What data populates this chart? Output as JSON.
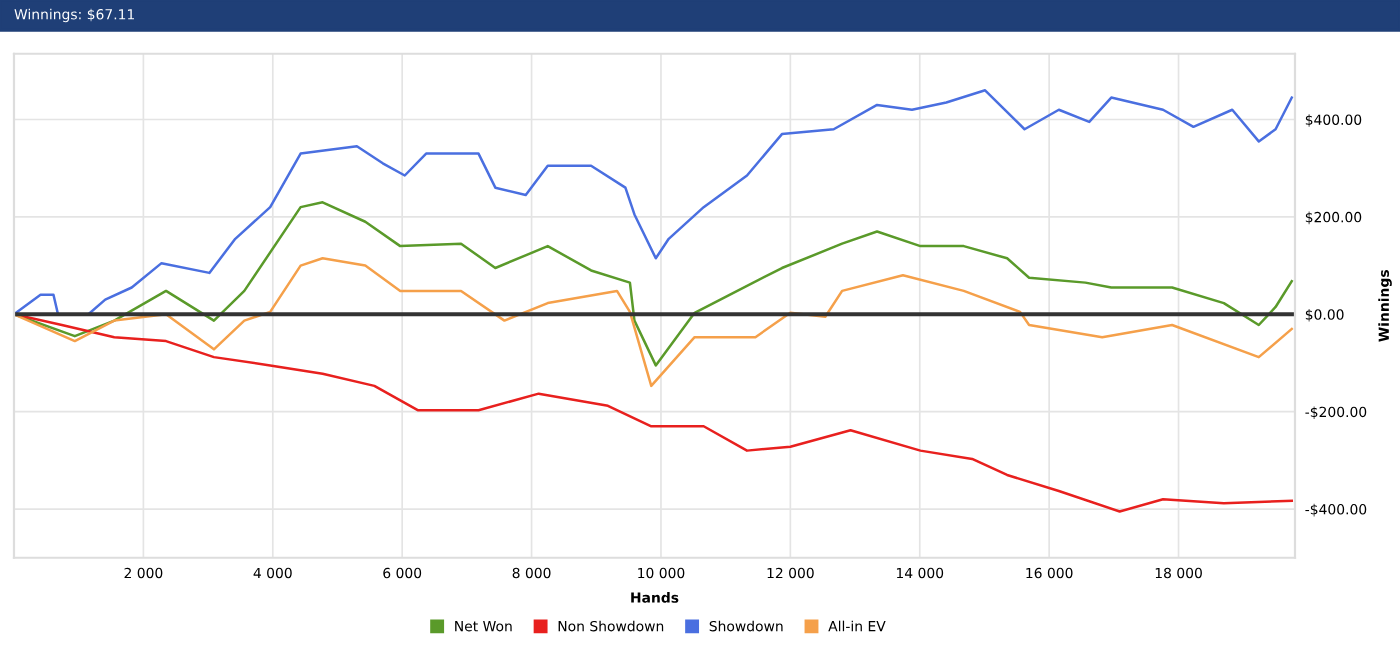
{
  "chart_data": {
    "type": "line",
    "title": "Winnings: $67.11",
    "xlabel": "Hands",
    "ylabel": "Winnings",
    "xlim": [
      0,
      19800
    ],
    "ylim": [
      -500,
      535
    ],
    "xticks": [
      {
        "value": 2000,
        "label": "2 000"
      },
      {
        "value": 4000,
        "label": "4 000"
      },
      {
        "value": 6000,
        "label": "6 000"
      },
      {
        "value": 8000,
        "label": "8 000"
      },
      {
        "value": 10000,
        "label": "10 000"
      },
      {
        "value": 12000,
        "label": "12 000"
      },
      {
        "value": 14000,
        "label": "14 000"
      },
      {
        "value": 16000,
        "label": "16 000"
      },
      {
        "value": 18000,
        "label": "18 000"
      }
    ],
    "yticks": [
      {
        "value": -400,
        "label": "-$400.00"
      },
      {
        "value": -200,
        "label": "-$200.00"
      },
      {
        "value": 0,
        "label": "$0.00"
      },
      {
        "value": 200,
        "label": "$200.00"
      },
      {
        "value": 400,
        "label": "$400.00"
      }
    ],
    "grid": true,
    "legend": "bottom",
    "marker": "none",
    "line_style": "solid",
    "ref_lines": [
      {
        "axis": "y",
        "value": 0,
        "color": "#333333"
      }
    ],
    "series": [
      {
        "name": "Net Won",
        "color": "#5a9a2a",
        "x": [
          0,
          940,
          1550,
          2350,
          3090,
          3560,
          4430,
          4770,
          5430,
          5970,
          6910,
          7440,
          8250,
          8920,
          9520,
          9590,
          9920,
          10520,
          11060,
          11870,
          12800,
          13340,
          14010,
          14680,
          15350,
          15690,
          16560,
          16960,
          17900,
          18700,
          19240,
          19500,
          19750
        ],
        "values": [
          0,
          -45,
          -13,
          48,
          -13,
          48,
          220,
          230,
          190,
          140,
          145,
          95,
          140,
          90,
          65,
          -13,
          -105,
          3,
          40,
          95,
          145,
          170,
          140,
          140,
          115,
          75,
          65,
          55,
          55,
          23,
          -22,
          15,
          68
        ]
      },
      {
        "name": "Non Showdown",
        "color": "#e8201e",
        "x": [
          0,
          740,
          1550,
          2350,
          3090,
          3960,
          4770,
          5570,
          6240,
          7180,
          8110,
          9180,
          9850,
          10660,
          11330,
          12000,
          12930,
          14010,
          14810,
          15350,
          16150,
          17090,
          17760,
          18700,
          19750
        ],
        "values": [
          0,
          -22,
          -47,
          -55,
          -88,
          -105,
          -122,
          -147,
          -197,
          -197,
          -163,
          -188,
          -230,
          -230,
          -280,
          -272,
          -238,
          -280,
          -297,
          -330,
          -363,
          -405,
          -380,
          -388,
          -383
        ]
      },
      {
        "name": "Showdown",
        "color": "#4a6fe0",
        "x": [
          0,
          410,
          610,
          680,
          1150,
          1410,
          1820,
          2280,
          3020,
          3420,
          3960,
          4430,
          5300,
          5700,
          6040,
          6370,
          7180,
          7440,
          7910,
          8250,
          8920,
          9450,
          9590,
          9920,
          10120,
          10660,
          11330,
          11870,
          12670,
          13340,
          13880,
          14410,
          15010,
          15620,
          16150,
          16620,
          16960,
          17760,
          18230,
          18830,
          19240,
          19500,
          19750
        ],
        "values": [
          0,
          40,
          40,
          0,
          0,
          30,
          55,
          105,
          85,
          155,
          220,
          330,
          345,
          310,
          285,
          330,
          330,
          260,
          245,
          305,
          305,
          260,
          205,
          115,
          155,
          220,
          285,
          370,
          380,
          430,
          420,
          435,
          460,
          380,
          420,
          395,
          445,
          420,
          385,
          420,
          355,
          380,
          445
        ]
      },
      {
        "name": "All-in EV",
        "color": "#f5a04a",
        "x": [
          0,
          940,
          1550,
          2350,
          3090,
          3560,
          3960,
          4430,
          4770,
          5430,
          5970,
          6910,
          7580,
          8250,
          9320,
          9520,
          9850,
          10520,
          11460,
          12000,
          12540,
          12800,
          13740,
          14680,
          15550,
          15690,
          16820,
          17900,
          19240,
          19750
        ],
        "values": [
          0,
          -55,
          -13,
          0,
          -72,
          -13,
          5,
          100,
          115,
          100,
          48,
          48,
          -13,
          23,
          48,
          5,
          -147,
          -47,
          -47,
          3,
          -5,
          48,
          80,
          48,
          5,
          -22,
          -47,
          -22,
          -88,
          -30
        ]
      }
    ]
  }
}
